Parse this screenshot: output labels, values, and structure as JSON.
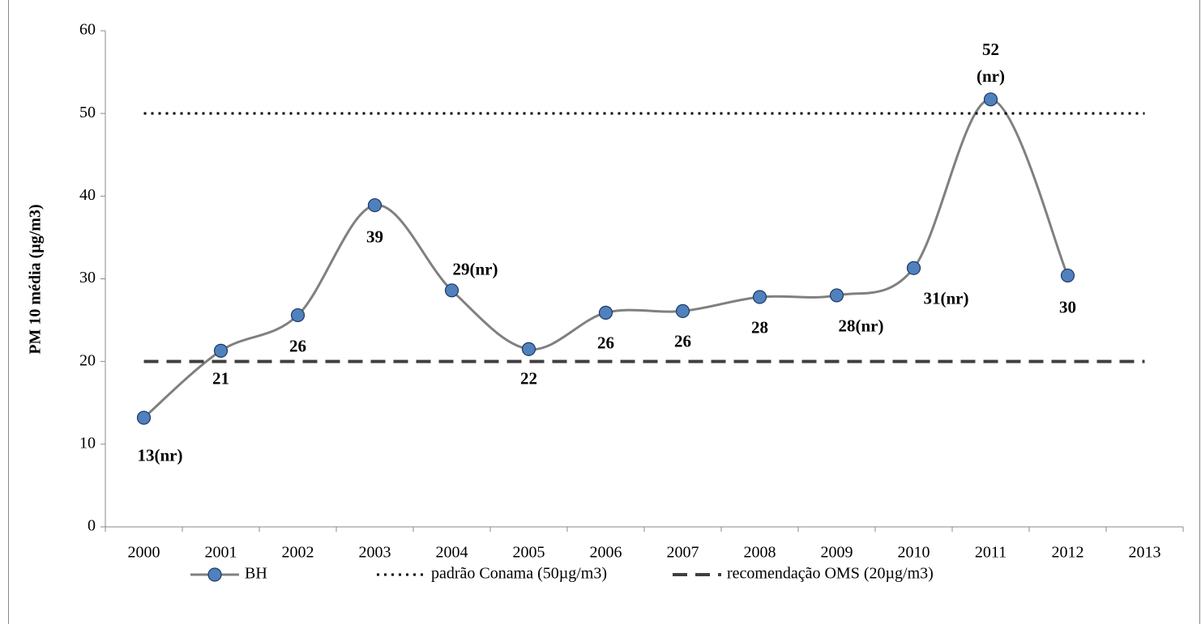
{
  "chart_data": {
    "type": "line",
    "y_label": "PM 10 média (µg/m3)",
    "categories": [
      "2000",
      "2001",
      "2002",
      "2003",
      "2004",
      "2005",
      "2006",
      "2007",
      "2008",
      "2009",
      "2010",
      "2011",
      "2012",
      "2013"
    ],
    "series": [
      {
        "name": "BH",
        "color": "#808080",
        "marker_color": "#4f81bd",
        "style": "smooth",
        "values": [
          13.2,
          21.3,
          25.6,
          38.9,
          28.6,
          21.5,
          25.9,
          26.1,
          27.8,
          28.0,
          31.3,
          51.7,
          30.4,
          null
        ],
        "value_labels": [
          "13(nr)",
          "21",
          "26",
          "39",
          "29(nr)",
          "22",
          "26",
          "26",
          "28",
          "28(nr)",
          "31(nr)",
          "52\n(nr)",
          "30",
          null
        ]
      },
      {
        "name": "padrão Conama (50µg/m3)",
        "color": "#000000",
        "style": "dotted",
        "values": [
          50,
          50,
          50,
          50,
          50,
          50,
          50,
          50,
          50,
          50,
          50,
          50,
          50,
          50
        ]
      },
      {
        "name": "recomendação OMS (20µg/m3)",
        "color": "#404040",
        "style": "dashed",
        "values": [
          20,
          20,
          20,
          20,
          20,
          20,
          20,
          20,
          20,
          20,
          20,
          20,
          20,
          20
        ]
      }
    ],
    "ylim": [
      0,
      60
    ],
    "yticks": [
      0,
      10,
      20,
      30,
      40,
      50,
      60
    ],
    "grid": false,
    "legend": "bottom"
  }
}
